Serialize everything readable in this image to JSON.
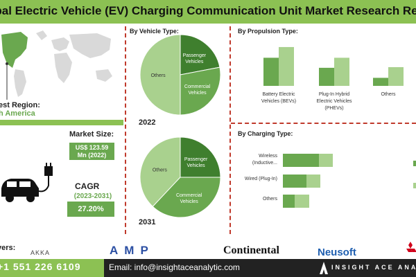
{
  "header": {
    "title": "obal Electric Vehicle (EV) Charging Communication Unit Market Research Repo"
  },
  "left": {
    "region_label": "est Region:",
    "region_value": "h America",
    "market_size_label": "Market Size:",
    "market_size_value": "US$ 123.59",
    "market_size_value_line2": "Mn (2022)",
    "cagr_label": "CAGR",
    "cagr_years": "(2023-2031)",
    "cagr_value": "27.20%"
  },
  "vehicle": {
    "title": "By  Vehicle Type:",
    "year_2022": "2022",
    "year_2031": "2031",
    "labels": {
      "others": "Others",
      "passenger_1": "Passenger",
      "passenger_2": "Vehicles",
      "commercial_1": "Commercial",
      "commercial_2": "Vehicles"
    }
  },
  "propulsion": {
    "title": "By Propulsion Type:",
    "labels": [
      "Battery Electric Vehicles (BEVs)",
      "Plug-In Hybrid Electric Vehicles (PHEVs)",
      "Others"
    ]
  },
  "charging": {
    "title": "By Charging Type:",
    "labels": [
      "Wireless (Inductive...",
      "Wired (Plug-In)",
      "Others"
    ]
  },
  "footer": {
    "players_label": "yers:",
    "logos": {
      "akka": "AKKA",
      "amp": "AMP",
      "continental": "Continental",
      "neusoft": "Neusoft"
    },
    "phone": "+1 551 226 6109",
    "email": "Email: info@insightaceanalytic.com",
    "brand": "INSIGHT ACE ANA"
  },
  "colors": {
    "dark_green": "#6aa84f",
    "light_green": "#a9d18e",
    "header_green": "#8cc153",
    "divider": "#c0392b"
  },
  "chart_data": [
    {
      "type": "pie",
      "title": "By  Vehicle Type: 2022",
      "categories": [
        "Others",
        "Passenger Vehicles",
        "Commercial Vehicles"
      ],
      "values": [
        50,
        22,
        28
      ]
    },
    {
      "type": "pie",
      "title": "By  Vehicle Type: 2031",
      "categories": [
        "Others",
        "Passenger Vehicles",
        "Commercial Vehicles"
      ],
      "values": [
        38,
        25,
        37
      ]
    },
    {
      "type": "bar",
      "title": "By Propulsion Type:",
      "categories": [
        "Battery Electric Vehicles (BEVs)",
        "Plug-In Hybrid Electric Vehicles (PHEVs)",
        "Others"
      ],
      "series": [
        {
          "values": [
            42,
            27,
            12
          ]
        },
        {
          "values": [
            58,
            42,
            28
          ]
        }
      ],
      "ylim": [
        0,
        60
      ]
    },
    {
      "type": "bar",
      "orientation": "horizontal",
      "title": "By Charging Type:",
      "categories": [
        "Wireless (Inductive...",
        "Wired (Plug-In)",
        "Others"
      ],
      "series": [
        {
          "values": [
            52,
            34,
            17
          ]
        },
        {
          "values": [
            72,
            54,
            38
          ]
        }
      ],
      "xlim": [
        0,
        130
      ]
    }
  ]
}
